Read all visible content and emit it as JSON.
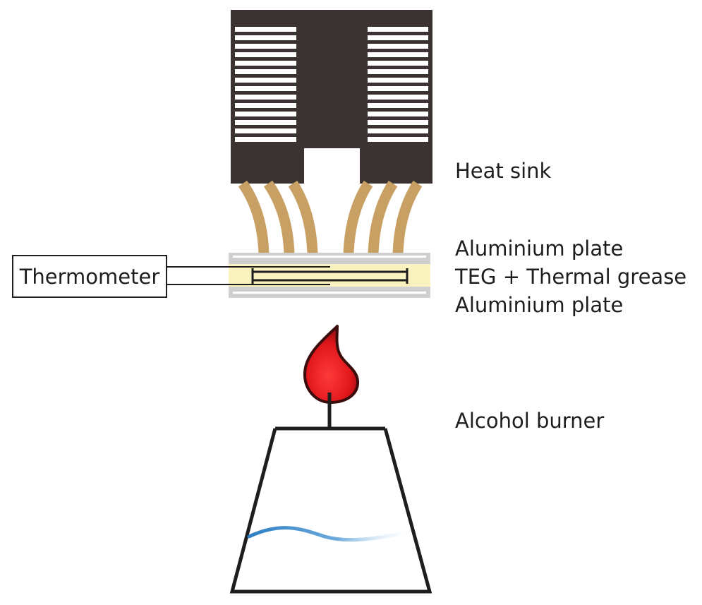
{
  "labels": {
    "heat_sink": "Heat sink",
    "aluminium_plate_top": "Aluminium plate",
    "teg_grease": "TEG + Thermal grease",
    "aluminium_plate_bottom": "Aluminium plate",
    "alcohol_burner": "Alcohol burner",
    "thermometer": "Thermometer"
  },
  "colors": {
    "heat_sink_body": "#3a3332",
    "fin_white": "#ffffff",
    "heat_pipe": "#c9a064",
    "aluminium_plate": "#cfcfcf",
    "teg_grease": "#fbf3bf",
    "flame_red": "#e0161b",
    "flame_dark": "#3b0d0d",
    "outline": "#1e1e1e",
    "alcohol_line": "#3b8bd0"
  }
}
